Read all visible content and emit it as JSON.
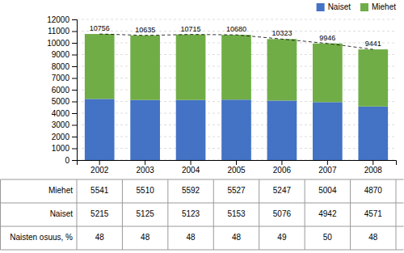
{
  "chart_data": {
    "type": "bar",
    "stacked": true,
    "categories": [
      "2002",
      "2003",
      "2004",
      "2005",
      "2006",
      "2007",
      "2008"
    ],
    "series": [
      {
        "name": "Naiset",
        "color": "#4472c4",
        "values": [
          5215,
          5125,
          5123,
          5153,
          5076,
          4942,
          4571
        ]
      },
      {
        "name": "Miehet",
        "color": "#70ad47",
        "values": [
          5541,
          5510,
          5592,
          5527,
          5247,
          5004,
          4870
        ]
      }
    ],
    "totals": [
      10756,
      10635,
      10715,
      10680,
      10323,
      9946,
      9441
    ],
    "ylim": [
      0,
      12000
    ],
    "yticks": [
      0,
      1000,
      2000,
      3000,
      4000,
      5000,
      6000,
      7000,
      8000,
      9000,
      10000,
      11000,
      12000
    ],
    "grid": true,
    "legend": "top-right",
    "table": [
      {
        "label": "Miehet",
        "values": [
          5541,
          5510,
          5592,
          5527,
          5247,
          5004,
          4870
        ]
      },
      {
        "label": "Naiset",
        "values": [
          5215,
          5125,
          5123,
          5153,
          5076,
          4942,
          4571
        ]
      },
      {
        "label": "Naisten osuus, %",
        "values": [
          48,
          48,
          48,
          48,
          49,
          50,
          48
        ]
      }
    ]
  }
}
